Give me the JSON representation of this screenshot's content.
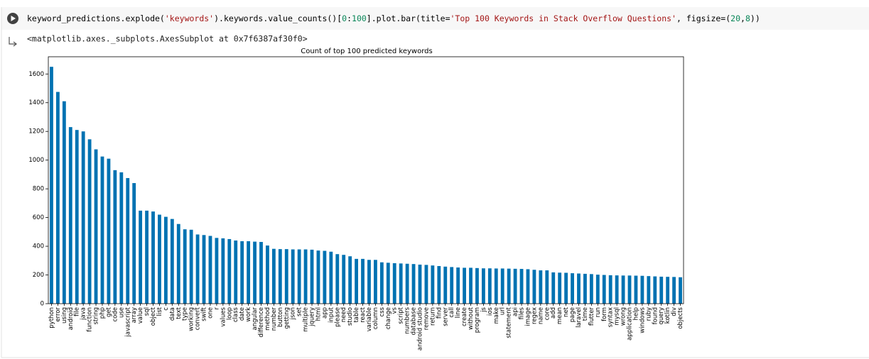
{
  "cell": {
    "code": [
      {
        "text": "keyword_predictions.explode(",
        "color": "#000000"
      },
      {
        "text": "'keywords'",
        "color": "#a31515"
      },
      {
        "text": ").keywords.value_counts()[",
        "color": "#000000"
      },
      {
        "text": "0",
        "color": "#098658"
      },
      {
        "text": ":",
        "color": "#000000"
      },
      {
        "text": "100",
        "color": "#098658"
      },
      {
        "text": "].plot.bar(title=",
        "color": "#000000"
      },
      {
        "text": "'Top 100 Keywords in Stack Overflow Questions'",
        "color": "#a31515"
      },
      {
        "text": ", figsize=(",
        "color": "#000000"
      },
      {
        "text": "20",
        "color": "#098658"
      },
      {
        "text": ",",
        "color": "#000000"
      },
      {
        "text": "8",
        "color": "#098658"
      },
      {
        "text": "))",
        "color": "#000000"
      }
    ],
    "output_text": "<matplotlib.axes._subplots.AxesSubplot at 0x7f6387af30f0>"
  },
  "chart_data": {
    "type": "bar",
    "title": "Count of top 100 predicted keywords",
    "color": "#0072b2",
    "categories": [
      "python",
      "error",
      "using",
      "android",
      "file",
      "java",
      "function",
      "string",
      "php",
      "get",
      "code",
      "use",
      "javascript",
      "array",
      "value",
      "sql",
      "object",
      "list",
      "c",
      "data",
      "text",
      "type",
      "working",
      "convert",
      "swift",
      "one",
      "r",
      "values",
      "loop",
      "class",
      "date",
      "work",
      "angular",
      "difference",
      "method",
      "number",
      "button",
      "getting",
      "json",
      "set",
      "multiple",
      "jquery",
      "html",
      "app",
      "input",
      "please",
      "need",
      "studio",
      "table",
      "react",
      "variable",
      "column",
      "css",
      "change",
      "vs",
      "script",
      "numbers",
      "database",
      "android studio",
      "remove",
      "return",
      "find",
      "server",
      "call",
      "line",
      "create",
      "without",
      "program",
      "js",
      "ios",
      "make",
      "url",
      "statement",
      "api",
      "files",
      "image",
      "regex",
      "name",
      "core",
      "add",
      "mean",
      "net",
      "page",
      "laravel",
      "time",
      "flutter",
      "run",
      "form",
      "syntax",
      "mysql",
      "wrong",
      "application",
      "help",
      "windows",
      "ruby",
      "found",
      "query",
      "kotlin",
      "div",
      "objects"
    ],
    "values": [
      1650,
      1475,
      1410,
      1230,
      1210,
      1200,
      1145,
      1075,
      1025,
      1010,
      930,
      915,
      875,
      840,
      648,
      648,
      642,
      620,
      605,
      590,
      555,
      518,
      515,
      482,
      478,
      472,
      458,
      455,
      450,
      440,
      435,
      435,
      432,
      430,
      405,
      382,
      380,
      380,
      378,
      378,
      378,
      376,
      370,
      368,
      362,
      345,
      340,
      330,
      312,
      312,
      305,
      305,
      288,
      285,
      282,
      280,
      278,
      276,
      272,
      270,
      266,
      262,
      258,
      255,
      252,
      250,
      250,
      248,
      246,
      246,
      245,
      245,
      244,
      243,
      242,
      240,
      236,
      232,
      232,
      218,
      216,
      215,
      212,
      210,
      208,
      206,
      202,
      200,
      198,
      197,
      196,
      196,
      195,
      194,
      192,
      190,
      188,
      187,
      186,
      184
    ],
    "ylim": [
      0,
      1720
    ],
    "yticks": [
      0,
      200,
      400,
      600,
      800,
      1000,
      1200,
      1400,
      1600
    ],
    "grid": false
  }
}
